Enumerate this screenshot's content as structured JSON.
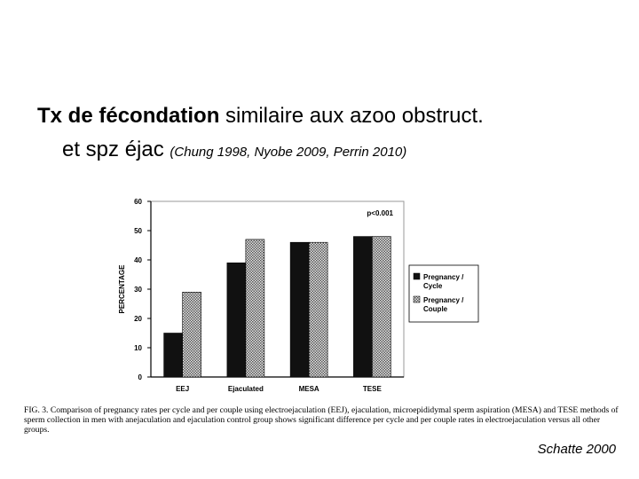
{
  "slide": {
    "title_bold": "Tx de fécondation",
    "title_rest": " similaire aux azoo obstruct.",
    "line2_text": "et spz éjac ",
    "line2_citation": "(Chung 1998, Nyobe 2009, Perrin 2010)",
    "caption": "FIG. 3. Comparison of pregnancy rates per cycle and per couple using electroejaculation (EEJ), ejaculation, microepididymal sperm aspiration (MESA) and TESE methods of sperm collection in men with anejaculation and ejaculation control group shows significant difference per cycle and per couple rates in electroejaculation versus all other groups.",
    "credit": "Schatte 2000"
  },
  "chart_data": {
    "type": "bar",
    "categories": [
      "EEJ",
      "Ejaculated",
      "MESA",
      "TESE"
    ],
    "series": [
      {
        "name": "Pregnancy / Cycle",
        "values": [
          15,
          39,
          46,
          48
        ],
        "color": "#111111"
      },
      {
        "name": "Pregnancy / Couple",
        "values": [
          29,
          47,
          46,
          48
        ],
        "color": "#b9b9b9"
      }
    ],
    "ylabel": "PERCENTAGE",
    "ylim": [
      0,
      60
    ],
    "yticks": [
      0,
      10,
      20,
      30,
      40,
      50,
      60
    ],
    "annotation": "p<0.001",
    "grid": false,
    "legend_position": "right"
  }
}
